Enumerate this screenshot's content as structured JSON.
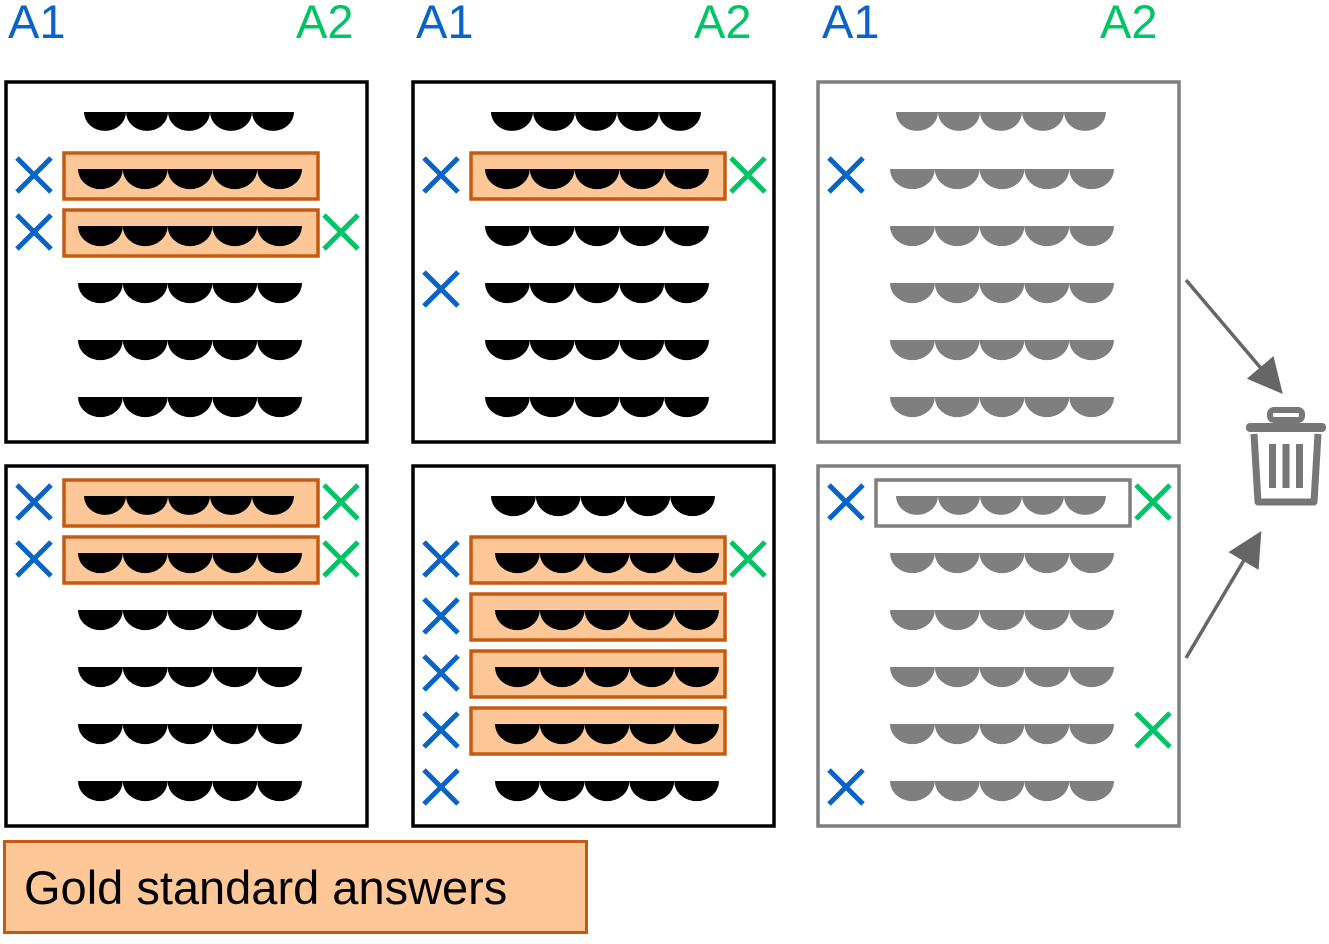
{
  "colors": {
    "a1": "#0a63c7",
    "a2": "#00c465",
    "gold_fill": "#fdc797",
    "gold_border": "#c55a11",
    "active": "#000000",
    "discarded": "#7f7f7f"
  },
  "annotator_labels": {
    "a1": "A1",
    "a2": "A2"
  },
  "legend": {
    "label": "Gold standard answers"
  },
  "icons": [
    "cross-mark-icon",
    "wavy-text-line-icon",
    "arrow-icon",
    "trash-icon"
  ],
  "panels": [
    {
      "id": "p1",
      "discarded": false,
      "lines": [
        {
          "a1": false,
          "a2": false,
          "gold": false
        },
        {
          "a1": true,
          "a2": false,
          "gold": true
        },
        {
          "a1": true,
          "a2": true,
          "gold": true
        },
        {
          "a1": false,
          "a2": false,
          "gold": false
        },
        {
          "a1": false,
          "a2": false,
          "gold": false
        },
        {
          "a1": false,
          "a2": false,
          "gold": false
        }
      ]
    },
    {
      "id": "p2",
      "discarded": false,
      "lines": [
        {
          "a1": false,
          "a2": false,
          "gold": false
        },
        {
          "a1": true,
          "a2": true,
          "gold": true
        },
        {
          "a1": false,
          "a2": false,
          "gold": false
        },
        {
          "a1": true,
          "a2": false,
          "gold": false
        },
        {
          "a1": false,
          "a2": false,
          "gold": false
        },
        {
          "a1": false,
          "a2": false,
          "gold": false
        }
      ]
    },
    {
      "id": "p3",
      "discarded": true,
      "lines": [
        {
          "a1": false,
          "a2": false,
          "gold": false
        },
        {
          "a1": true,
          "a2": false,
          "gold": false
        },
        {
          "a1": false,
          "a2": false,
          "gold": false
        },
        {
          "a1": false,
          "a2": false,
          "gold": false
        },
        {
          "a1": false,
          "a2": false,
          "gold": false
        },
        {
          "a1": false,
          "a2": false,
          "gold": false
        }
      ]
    },
    {
      "id": "p4",
      "discarded": false,
      "lines": [
        {
          "a1": true,
          "a2": true,
          "gold": true
        },
        {
          "a1": true,
          "a2": true,
          "gold": true
        },
        {
          "a1": false,
          "a2": false,
          "gold": false
        },
        {
          "a1": false,
          "a2": false,
          "gold": false
        },
        {
          "a1": false,
          "a2": false,
          "gold": false
        },
        {
          "a1": false,
          "a2": false,
          "gold": false
        }
      ]
    },
    {
      "id": "p5",
      "discarded": false,
      "lines": [
        {
          "a1": false,
          "a2": false,
          "gold": false
        },
        {
          "a1": true,
          "a2": true,
          "gold": true
        },
        {
          "a1": true,
          "a2": false,
          "gold": true
        },
        {
          "a1": true,
          "a2": false,
          "gold": true
        },
        {
          "a1": true,
          "a2": false,
          "gold": true
        },
        {
          "a1": true,
          "a2": false,
          "gold": false
        }
      ]
    },
    {
      "id": "p6",
      "discarded": true,
      "lines": [
        {
          "a1": true,
          "a2": true,
          "gold": true
        },
        {
          "a1": false,
          "a2": false,
          "gold": false
        },
        {
          "a1": false,
          "a2": false,
          "gold": false
        },
        {
          "a1": false,
          "a2": false,
          "gold": false
        },
        {
          "a1": false,
          "a2": true,
          "gold": false
        },
        {
          "a1": true,
          "a2": false,
          "gold": false
        }
      ]
    }
  ]
}
